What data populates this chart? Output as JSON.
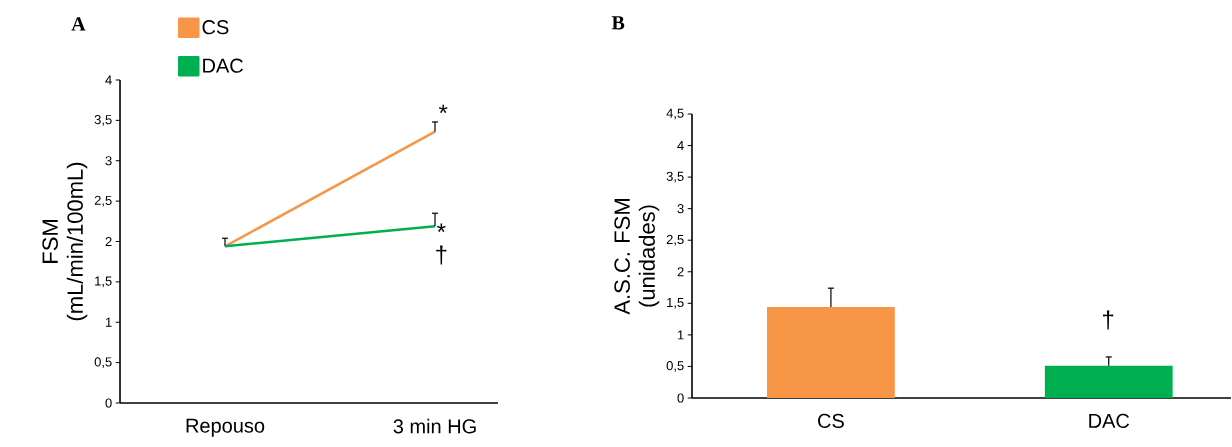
{
  "chart_data": [
    {
      "type": "line",
      "title": "A",
      "ylabel": "FSM (mL/min/100mL)",
      "categories": [
        "Repouso",
        "3 min HG"
      ],
      "series": [
        {
          "name": "CS",
          "color": "#f79646",
          "values": [
            1.94,
            3.36
          ],
          "errors": [
            [
              1.94,
              2.04
            ],
            [
              3.36,
              3.48
            ]
          ]
        },
        {
          "name": "DAC",
          "color": "#00b050",
          "values": [
            1.94,
            2.19
          ],
          "errors": [
            null,
            [
              2.19,
              2.35
            ]
          ]
        }
      ],
      "ylim": [
        0,
        4
      ],
      "yticks": [
        0,
        {
          "value": 0.5,
          "label": "0,5"
        },
        1,
        {
          "value": 1.5,
          "label": "1,5"
        },
        2,
        {
          "value": 2.5,
          "label": "2,5"
        },
        3,
        {
          "value": 3.5,
          "label": "3,5"
        },
        4
      ],
      "legend": "top left",
      "grid": false,
      "annotations": [
        "*",
        "*",
        "†"
      ]
    },
    {
      "type": "bar",
      "title": "B",
      "ylabel": "A.S.C. FSM (unidades)",
      "categories": [
        "CS",
        "DAC"
      ],
      "values": [
        1.44,
        0.51
      ],
      "colors": [
        "#f79646",
        "#00b050"
      ],
      "errors": [
        [
          1.44,
          1.74
        ],
        [
          0.51,
          0.65
        ]
      ],
      "ylim": [
        0,
        4.5
      ],
      "yticks": [
        0,
        {
          "value": 0.5,
          "label": "0,5"
        },
        1,
        {
          "value": 1.5,
          "label": "1,5"
        },
        2,
        {
          "value": 2.5,
          "label": "2,5"
        },
        3,
        {
          "value": 3.5,
          "label": "3,5"
        },
        4,
        {
          "value": 4.5,
          "label": "4,5"
        }
      ],
      "grid": false,
      "annotations": [
        "†"
      ]
    }
  ]
}
